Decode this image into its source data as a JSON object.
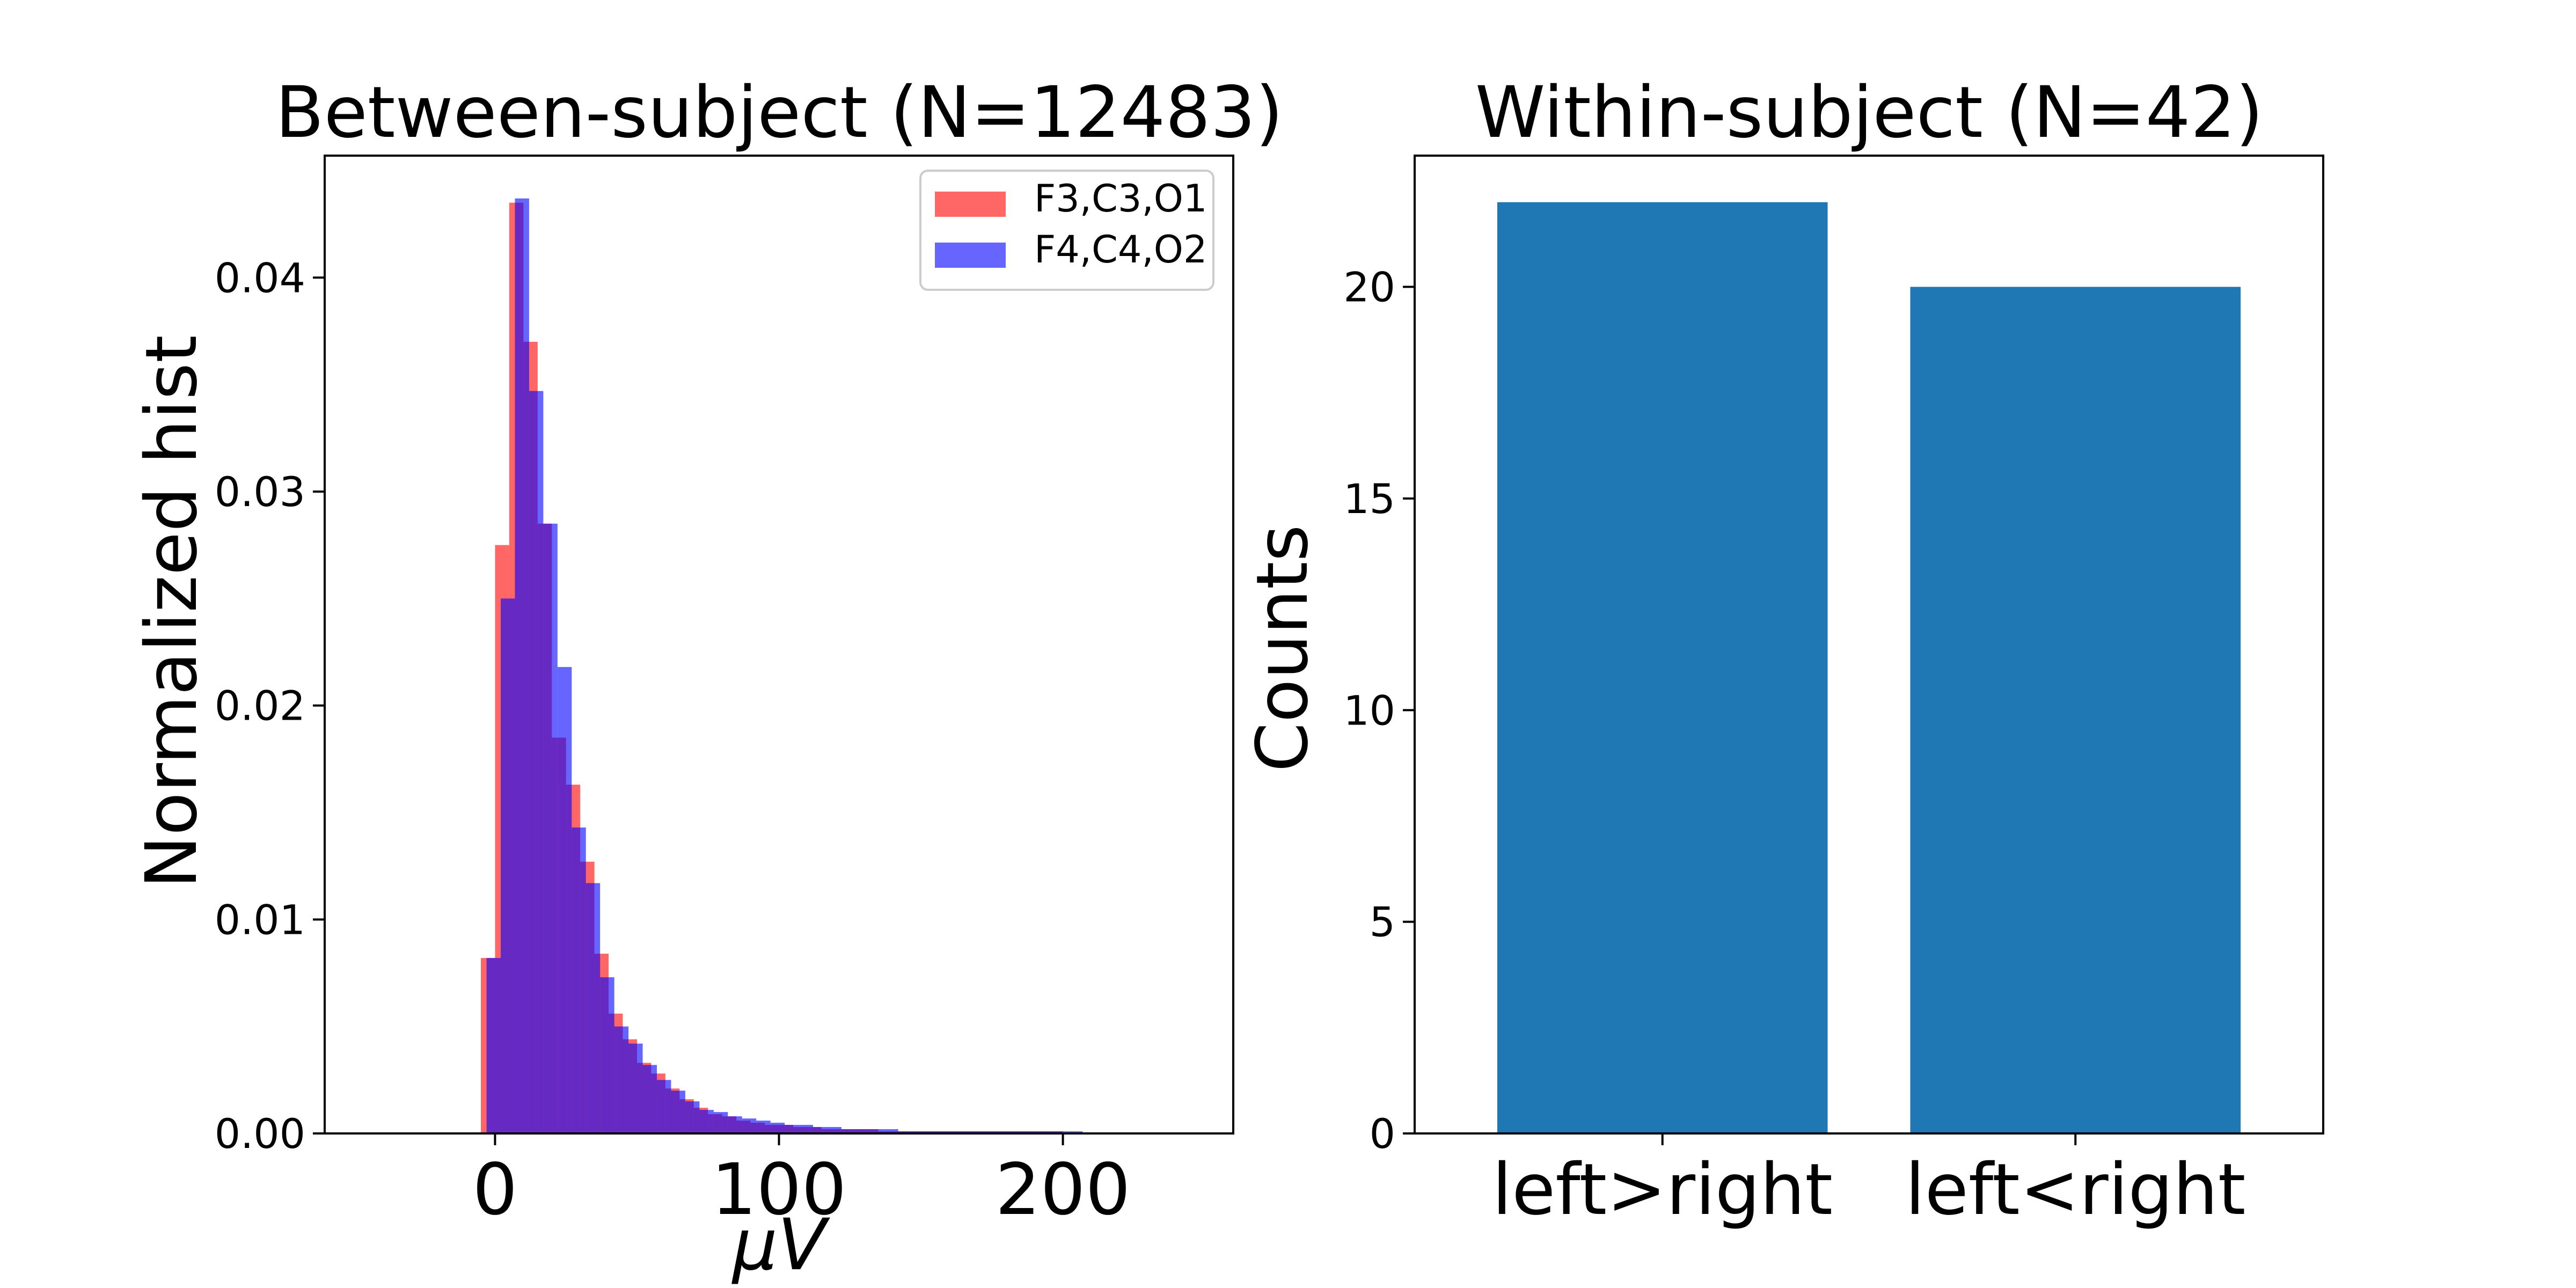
{
  "chart_data": [
    {
      "type": "bar",
      "title": "Between-subject (N=12483)",
      "xlabel": "μV",
      "ylabel": "Normalized hist",
      "xlim": [
        -60,
        260
      ],
      "ylim": [
        0,
        0.0457
      ],
      "xticks": [
        "0",
        "100",
        "200"
      ],
      "xtick_values": [
        0,
        100,
        200
      ],
      "yticks": [
        "0.00",
        "0.01",
        "0.02",
        "0.03",
        "0.04"
      ],
      "ytick_values": [
        0,
        0.01,
        0.02,
        0.03,
        0.04
      ],
      "legend_position": "upper right",
      "bin_width": 5,
      "series": [
        {
          "name": "F3,C3,O1",
          "color": "#ff0000",
          "alpha": 0.6,
          "bin_starts": [
            -5,
            0,
            5,
            10,
            15,
            20,
            25,
            30,
            35,
            40,
            45,
            50,
            55,
            60,
            65,
            70,
            75,
            80,
            85,
            90,
            95,
            100,
            105,
            110,
            115,
            120,
            125,
            130,
            135,
            140,
            145,
            150,
            155,
            160,
            165,
            170,
            175,
            180,
            185,
            190,
            195,
            200,
            205
          ],
          "values": [
            0.0082,
            0.0275,
            0.0435,
            0.037,
            0.0285,
            0.0185,
            0.0163,
            0.0127,
            0.0084,
            0.0056,
            0.0044,
            0.0033,
            0.0028,
            0.0021,
            0.0016,
            0.0012,
            0.0009,
            0.0008,
            0.0006,
            0.0005,
            0.0004,
            0.0004,
            0.0003,
            0.0003,
            0.0002,
            0.0002,
            0.0002,
            0.0002,
            0.0001,
            0.0001,
            0.0001,
            0.0001,
            0.0001,
            0.0001,
            0.0001,
            0.0001,
            0.0001,
            0.0001,
            0.0001,
            0.0001,
            0.0001,
            0.0,
            0.0
          ]
        },
        {
          "name": "F4,C4,O2",
          "color": "#0000ff",
          "alpha": 0.6,
          "bin_starts": [
            -3,
            2,
            7,
            12,
            17,
            22,
            27,
            32,
            37,
            42,
            47,
            52,
            57,
            62,
            67,
            72,
            77,
            82,
            87,
            92,
            97,
            102,
            107,
            112,
            117,
            122,
            127,
            132,
            137,
            142,
            147,
            152,
            157,
            162,
            167,
            172,
            177,
            182,
            187,
            192,
            197,
            202,
            207
          ],
          "values": [
            0.0082,
            0.025,
            0.0437,
            0.0347,
            0.0285,
            0.0218,
            0.0143,
            0.0117,
            0.0073,
            0.005,
            0.0042,
            0.0032,
            0.0025,
            0.002,
            0.0015,
            0.0011,
            0.001,
            0.0008,
            0.0007,
            0.0006,
            0.0005,
            0.0004,
            0.0004,
            0.0003,
            0.0003,
            0.0002,
            0.0002,
            0.0002,
            0.0002,
            0.0001,
            0.0001,
            0.0001,
            0.0001,
            0.0001,
            0.0001,
            0.0001,
            0.0001,
            0.0001,
            0.0001,
            0.0001,
            0.0001,
            0.0001,
            0.0
          ]
        }
      ]
    },
    {
      "type": "bar",
      "title": "Within-subject (N=42)",
      "xlabel": "",
      "ylabel": "Counts",
      "ylim": [
        0,
        23.1
      ],
      "yticks": [
        "0",
        "5",
        "10",
        "15",
        "20"
      ],
      "ytick_values": [
        0,
        5,
        10,
        15,
        20
      ],
      "categories": [
        "left>right",
        "left<right"
      ],
      "values": [
        22,
        20
      ],
      "color": "#1f77b4"
    }
  ]
}
